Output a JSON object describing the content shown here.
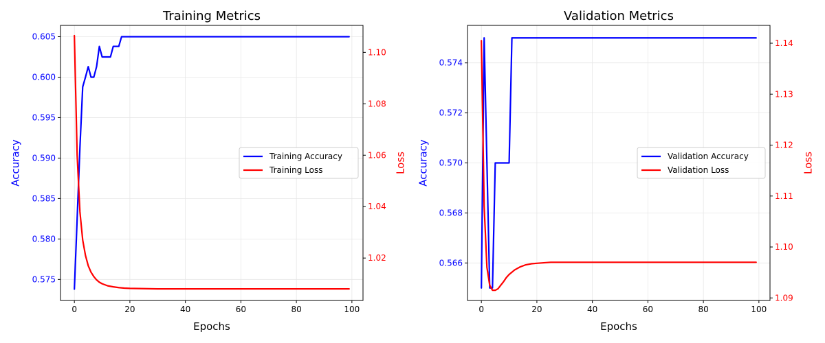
{
  "chart_data": [
    {
      "type": "line",
      "title": "Training Metrics",
      "xlabel": "Epochs",
      "ylabel_left": "Accuracy",
      "ylabel_right": "Loss",
      "xlim": [
        -5,
        104
      ],
      "ylim_left": [
        0.5724,
        0.6064
      ],
      "ylim_right": [
        1.0035,
        1.1105
      ],
      "xticks": [
        0,
        20,
        40,
        60,
        80,
        100
      ],
      "yticks_left": [
        0.575,
        0.58,
        0.585,
        0.59,
        0.595,
        0.6,
        0.605
      ],
      "yticks_right": [
        1.02,
        1.04,
        1.06,
        1.08,
        1.1
      ],
      "grid": true,
      "legend_position": "center-right",
      "series": [
        {
          "name": "Training Accuracy",
          "axis": "left",
          "color": "#0000ff",
          "x": [
            0,
            1,
            2,
            3,
            4,
            5,
            6,
            7,
            8,
            9,
            10,
            11,
            12,
            13,
            14,
            15,
            16,
            17,
            18,
            99
          ],
          "y": [
            0.5738,
            0.5825,
            0.5913,
            0.5988,
            0.6,
            0.6013,
            0.6,
            0.6,
            0.6013,
            0.6038,
            0.6025,
            0.6025,
            0.6025,
            0.6025,
            0.6038,
            0.6038,
            0.6038,
            0.605,
            0.605,
            0.605
          ]
        },
        {
          "name": "Training Loss",
          "axis": "right",
          "color": "#ff0000",
          "x": [
            0,
            1,
            2,
            3,
            4,
            5,
            6,
            7,
            8,
            9,
            10,
            12,
            14,
            16,
            18,
            20,
            25,
            30,
            40,
            99
          ],
          "y": [
            1.1065,
            1.06,
            1.038,
            1.027,
            1.021,
            1.017,
            1.0145,
            1.0128,
            1.0115,
            1.0106,
            1.01,
            1.0092,
            1.0088,
            1.0085,
            1.0083,
            1.0082,
            1.0081,
            1.008,
            1.008,
            1.008
          ]
        }
      ]
    },
    {
      "type": "line",
      "title": "Validation Metrics",
      "xlabel": "Epochs",
      "ylabel_left": "Accuracy",
      "ylabel_right": "Loss",
      "xlim": [
        -5,
        104
      ],
      "ylim_left": [
        0.5645,
        0.5755
      ],
      "ylim_right": [
        1.0895,
        1.1435
      ],
      "xticks": [
        0,
        20,
        40,
        60,
        80,
        100
      ],
      "yticks_left": [
        0.566,
        0.568,
        0.57,
        0.572,
        0.574
      ],
      "yticks_right": [
        1.09,
        1.1,
        1.11,
        1.12,
        1.13,
        1.14
      ],
      "grid": true,
      "legend_position": "center-right",
      "series": [
        {
          "name": "Validation Accuracy",
          "axis": "left",
          "color": "#0000ff",
          "x": [
            0,
            1,
            2,
            3,
            4,
            5,
            6,
            7,
            8,
            9,
            10,
            11,
            99
          ],
          "y": [
            0.565,
            0.575,
            0.57,
            0.565,
            0.565,
            0.57,
            0.57,
            0.57,
            0.57,
            0.57,
            0.57,
            0.575,
            0.575
          ]
        },
        {
          "name": "Validation Loss",
          "axis": "right",
          "color": "#ff0000",
          "x": [
            0,
            1,
            2,
            3,
            4,
            5,
            6,
            7,
            8,
            9,
            10,
            12,
            14,
            16,
            18,
            20,
            25,
            30,
            40,
            99
          ],
          "y": [
            1.1405,
            1.108,
            1.096,
            1.0925,
            1.0915,
            1.0915,
            1.0918,
            1.0925,
            1.0932,
            1.094,
            1.0946,
            1.0955,
            1.0961,
            1.0965,
            1.0967,
            1.0968,
            1.097,
            1.097,
            1.097,
            1.097
          ]
        }
      ]
    }
  ]
}
